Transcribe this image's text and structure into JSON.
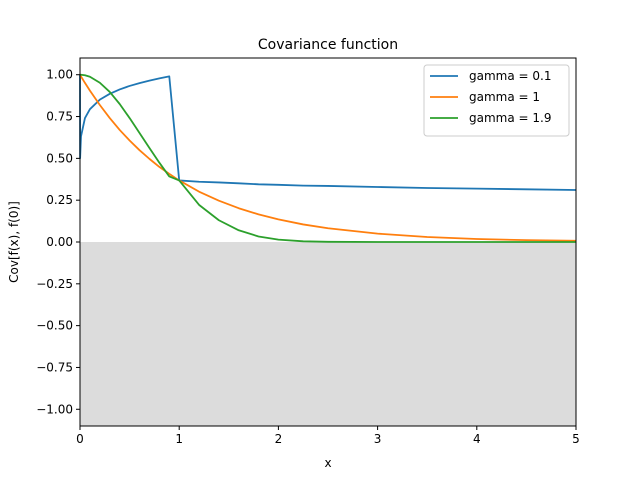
{
  "chart_data": {
    "type": "line",
    "title": "Covariance function",
    "xlabel": "x",
    "ylabel": "Cov[f(x), f(0)]",
    "xlim": [
      0,
      5
    ],
    "ylim": [
      -1.1,
      1.1
    ],
    "x_ticks": [
      0,
      1,
      2,
      3,
      4,
      5
    ],
    "x_tick_labels": [
      "0",
      "1",
      "2",
      "3",
      "4",
      "5"
    ],
    "y_ticks": [
      -1.0,
      -0.75,
      -0.5,
      -0.25,
      0.0,
      0.25,
      0.5,
      0.75,
      1.0
    ],
    "y_tick_labels": [
      "−1.00",
      "−0.75",
      "−0.50",
      "−0.25",
      "0.00",
      "0.25",
      "0.50",
      "0.75",
      "1.00"
    ],
    "grid": false,
    "legend_position": "top-right",
    "shaded_region": {
      "y_from": -1.1,
      "y_to": 0,
      "color": "#dcdcdc"
    },
    "x": [
      0,
      0.001,
      0.01,
      0.05,
      0.1,
      0.2,
      0.3,
      0.4,
      0.5,
      0.6,
      0.7,
      0.8,
      0.9,
      1.0,
      1.2,
      1.4,
      1.6,
      1.8,
      2.0,
      2.25,
      2.5,
      3.0,
      3.5,
      4.0,
      4.5,
      5.0
    ],
    "series": [
      {
        "name": "gamma = 0.1",
        "color": "#1f77b4",
        "values": [
          1.0,
          0.501,
          0.631,
          0.741,
          0.794,
          0.851,
          0.886,
          0.912,
          0.933,
          0.95,
          0.965,
          0.978,
          0.99,
          0.368,
          0.36,
          0.356,
          0.351,
          0.345,
          0.342,
          0.337,
          0.335,
          0.329,
          0.323,
          0.319,
          0.315,
          0.311
        ]
      },
      {
        "name": "gamma = 1",
        "color": "#ff7f0e",
        "values": [
          1.0,
          0.999,
          0.99,
          0.951,
          0.905,
          0.819,
          0.741,
          0.67,
          0.607,
          0.549,
          0.497,
          0.449,
          0.407,
          0.368,
          0.301,
          0.247,
          0.202,
          0.165,
          0.135,
          0.105,
          0.082,
          0.05,
          0.03,
          0.018,
          0.011,
          0.007
        ]
      },
      {
        "name": "gamma = 1.9",
        "color": "#2ca02c",
        "values": [
          1.0,
          1.0,
          1.0,
          0.997,
          0.988,
          0.952,
          0.897,
          0.825,
          0.741,
          0.652,
          0.562,
          0.474,
          0.392,
          0.368,
          0.222,
          0.13,
          0.07,
          0.033,
          0.014,
          0.004,
          0.001,
          0.0,
          0.0,
          0.0,
          0.0,
          0.0
        ]
      }
    ]
  }
}
